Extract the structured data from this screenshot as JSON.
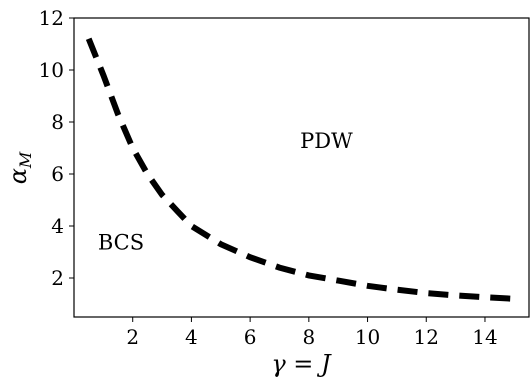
{
  "chart_data": {
    "type": "line",
    "xlabel": "γ = J",
    "ylabel": "α_M",
    "xlim": [
      0,
      15.5
    ],
    "ylim": [
      0.5,
      12
    ],
    "xticks": [
      2,
      4,
      6,
      8,
      10,
      12,
      14
    ],
    "yticks": [
      2,
      4,
      6,
      8,
      10,
      12
    ],
    "grid": false,
    "series": [
      {
        "style": "dashed",
        "color": "#000000",
        "x": [
          0.5,
          1,
          1.5,
          2,
          2.5,
          3,
          3.5,
          4,
          5,
          6,
          7,
          8,
          9,
          10,
          11,
          12,
          13,
          14,
          15
        ],
        "y": [
          11.2,
          9.8,
          8.3,
          7.0,
          6.0,
          5.2,
          4.6,
          4.0,
          3.3,
          2.8,
          2.4,
          2.1,
          1.9,
          1.7,
          1.55,
          1.42,
          1.33,
          1.26,
          1.2
        ]
      }
    ],
    "annotations": [
      {
        "text": "PDW",
        "x": 8.6,
        "y": 7.0
      },
      {
        "text": "BCS",
        "x": 1.6,
        "y": 3.1
      }
    ]
  }
}
